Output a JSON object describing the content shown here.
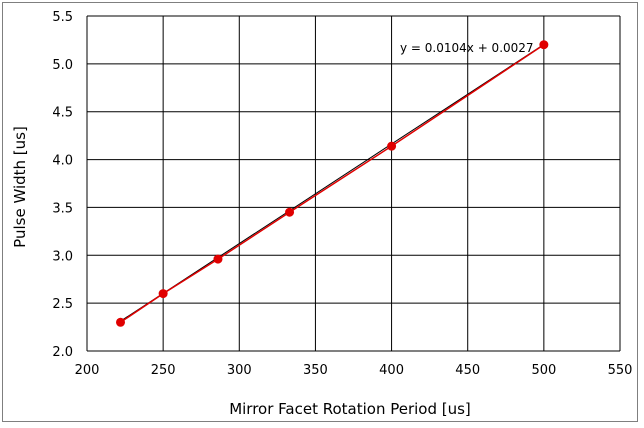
{
  "chart_data": {
    "type": "scatter",
    "title": "",
    "xlabel": "Mirror Facet Rotation Period [us]",
    "ylabel": "Pulse Width  [us]",
    "xlim": [
      200,
      550
    ],
    "ylim": [
      2.0,
      5.5
    ],
    "x_ticks": [
      "200",
      "250",
      "300",
      "350",
      "400",
      "450",
      "500",
      "550"
    ],
    "y_ticks": [
      "2.0",
      "2.5",
      "3.0",
      "3.5",
      "4.0",
      "4.5",
      "5.0",
      "5.5"
    ],
    "grid": true,
    "series": [
      {
        "points": [
          {
            "x": 222,
            "y": 2.3
          },
          {
            "x": 250,
            "y": 2.6
          },
          {
            "x": 286,
            "y": 2.96
          },
          {
            "x": 333,
            "y": 3.45
          },
          {
            "x": 400,
            "y": 4.14
          },
          {
            "x": 500,
            "y": 5.2
          }
        ]
      }
    ],
    "trendline": {
      "slope": 0.0104,
      "intercept": 0.0027,
      "x_range": [
        222,
        500
      ],
      "equation_label": "y = 0.0104x + 0.0027"
    },
    "colors": {
      "marker": "#e00000",
      "data_line": "#e00000",
      "trendline": "#000000",
      "grid": "#000000"
    }
  }
}
